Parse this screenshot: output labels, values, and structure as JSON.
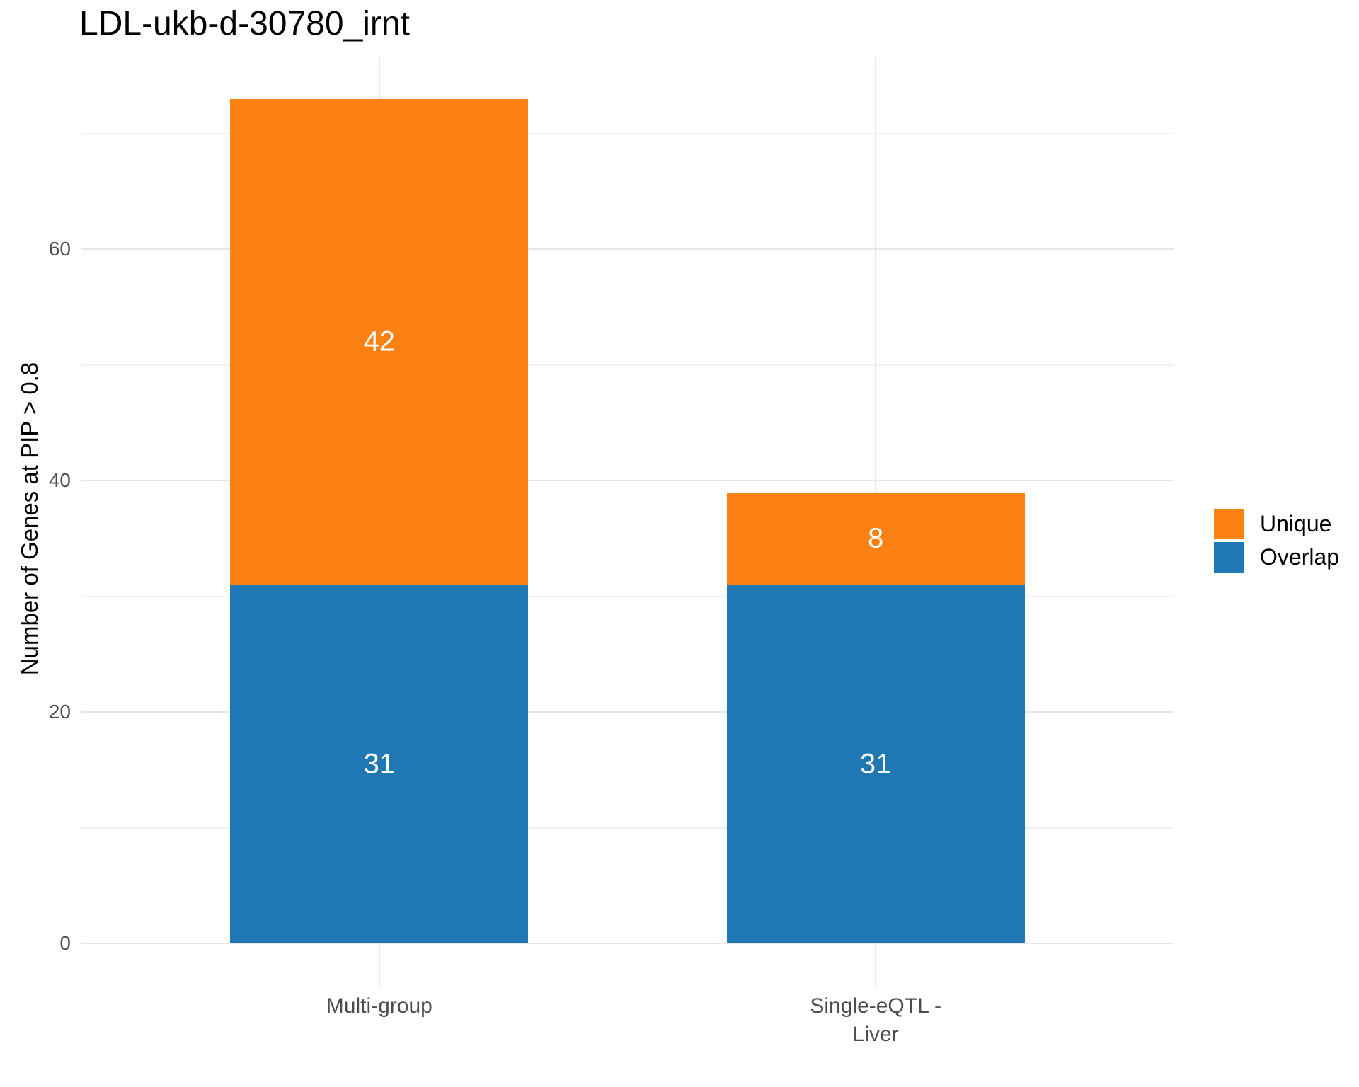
{
  "title": "LDL-ukb-d-30780_irnt",
  "colors": {
    "background": "#FFFFFF",
    "grid_major": "#E7E7E7",
    "grid_minor": "#F1F1F1",
    "axis_text": "#4D4D4D",
    "bar_label_text": "#FFFFFF",
    "orange": "#FB8114",
    "blue": "#1F77B4"
  },
  "chart_data": {
    "type": "bar",
    "stacked": true,
    "title": "LDL-ukb-d-30780_irnt",
    "xlabel": "",
    "ylabel": "Number of Genes at PIP > 0.8",
    "categories": [
      "Multi-group",
      "Single-eQTL -\nLiver"
    ],
    "series": [
      {
        "name": "Overlap",
        "color": "#1F77B4",
        "values": [
          31,
          31
        ]
      },
      {
        "name": "Unique",
        "color": "#FB8114",
        "values": [
          42,
          8
        ]
      }
    ],
    "totals": [
      73,
      39
    ],
    "bar_labels": [
      {
        "category": "Multi-group",
        "segment": "Unique",
        "value": 42
      },
      {
        "category": "Multi-group",
        "segment": "Overlap",
        "value": 31
      },
      {
        "category": "Single-eQTL - Liver",
        "segment": "Unique",
        "value": 8
      },
      {
        "category": "Single-eQTL - Liver",
        "segment": "Overlap",
        "value": 31
      }
    ],
    "yticks": [
      0,
      20,
      40,
      60
    ],
    "yticks_minor": [
      10,
      30,
      50,
      70
    ],
    "ylim": [
      0,
      73
    ],
    "grid": true,
    "legend": {
      "position": "right",
      "entries": [
        {
          "label": "Unique",
          "color": "#FB8114"
        },
        {
          "label": "Overlap",
          "color": "#1F77B4"
        }
      ]
    }
  }
}
